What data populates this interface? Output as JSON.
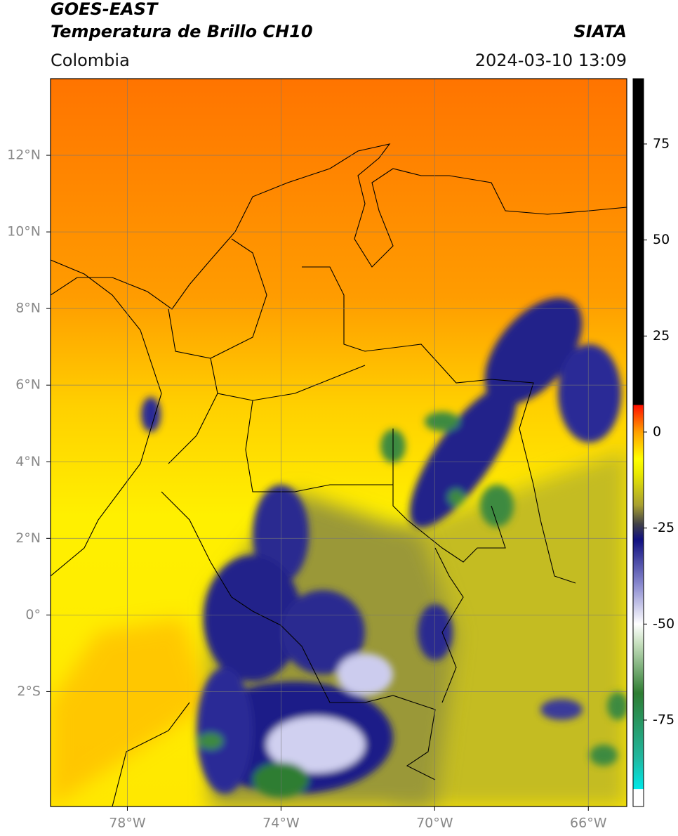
{
  "chart_data": {
    "type": "map",
    "title": "GOES-EAST",
    "subtitle": "Temperatura de Brillo CH10",
    "source": "SIATA",
    "region": "Colombia",
    "timestamp": "2024-03-10 13:09",
    "xlim": [
      -80,
      -65
    ],
    "ylim": [
      -5,
      14
    ],
    "xticks": [
      {
        "value": -78,
        "label": "78°W"
      },
      {
        "value": -74,
        "label": "74°W"
      },
      {
        "value": -70,
        "label": "70°W"
      },
      {
        "value": -66,
        "label": "66°W"
      }
    ],
    "yticks": [
      {
        "value": 12,
        "label": "12°N"
      },
      {
        "value": 10,
        "label": "10°N"
      },
      {
        "value": 8,
        "label": "8°N"
      },
      {
        "value": 6,
        "label": "6°N"
      },
      {
        "value": 4,
        "label": "4°N"
      },
      {
        "value": 2,
        "label": "2°N"
      },
      {
        "value": 0,
        "label": "0°"
      },
      {
        "value": -2,
        "label": "2°S"
      }
    ],
    "grid": true,
    "clim": [
      -97.5,
      92
    ],
    "cticks": [
      75,
      50,
      25,
      0,
      -25,
      -50,
      -75
    ],
    "colormap": [
      {
        "value": -97.5,
        "color": "#ffffff"
      },
      {
        "value": -93,
        "color": "#ffffff"
      },
      {
        "value": -92.9,
        "color": "#00e8e8"
      },
      {
        "value": -85,
        "color": "#20b8a0"
      },
      {
        "value": -68,
        "color": "#2e7d32"
      },
      {
        "value": -55,
        "color": "#c8e0c0"
      },
      {
        "value": -50,
        "color": "#ffffff"
      },
      {
        "value": -40,
        "color": "#8c8cd0"
      },
      {
        "value": -28,
        "color": "#101080"
      },
      {
        "value": -24,
        "color": "#404048"
      },
      {
        "value": -19,
        "color": "#a8a030"
      },
      {
        "value": -11,
        "color": "#e8e800"
      },
      {
        "value": -7,
        "color": "#ffff00"
      },
      {
        "value": 0,
        "color": "#ffa000"
      },
      {
        "value": 7,
        "color": "#ff1000"
      },
      {
        "value": 7.1,
        "color": "#000000"
      },
      {
        "value": 92,
        "color": "#000000"
      }
    ]
  }
}
